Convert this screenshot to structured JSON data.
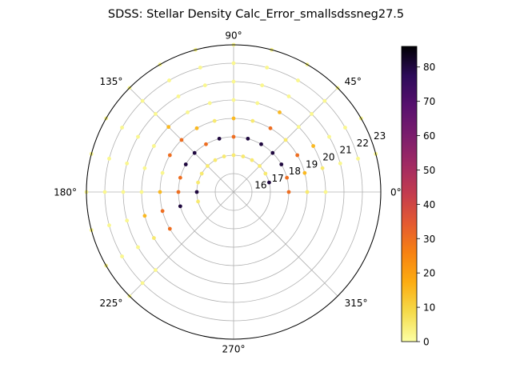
{
  "chart_data": {
    "type": "scatter",
    "projection": "polar",
    "title": "SDSS: Stellar Density Calc_Error_smallsdssneg27.5",
    "theta_tick_labels": [
      "0°",
      "45°",
      "90°",
      "135°",
      "180°",
      "225°",
      "270°",
      "315°"
    ],
    "theta_ticks_deg": [
      0,
      45,
      90,
      135,
      180,
      225,
      270,
      315
    ],
    "radial_ticks": [
      16,
      17,
      18,
      19,
      20,
      21,
      22,
      23
    ],
    "radial_range": [
      15,
      23
    ],
    "grid": true,
    "colorbar": {
      "cmap": "inferno_r",
      "range": [
        0,
        86
      ],
      "ticks": [
        0,
        10,
        20,
        30,
        40,
        50,
        60,
        70,
        80
      ],
      "position": "right"
    },
    "points": [
      {
        "theta": 0,
        "r": 18,
        "v": 30
      },
      {
        "theta": 0,
        "r": 19,
        "v": 5
      },
      {
        "theta": 0,
        "r": 20,
        "v": 2
      },
      {
        "theta": 15,
        "r": 17,
        "v": 80
      },
      {
        "theta": 15,
        "r": 18,
        "v": 30
      },
      {
        "theta": 15,
        "r": 19,
        "v": 15
      },
      {
        "theta": 15,
        "r": 20,
        "v": 5
      },
      {
        "theta": 15,
        "r": 21,
        "v": 2
      },
      {
        "theta": 15,
        "r": 22,
        "v": 2
      },
      {
        "theta": 15,
        "r": 23,
        "v": 2
      },
      {
        "theta": 30,
        "r": 17,
        "v": 5
      },
      {
        "theta": 30,
        "r": 18,
        "v": 80
      },
      {
        "theta": 30,
        "r": 19,
        "v": 30
      },
      {
        "theta": 30,
        "r": 20,
        "v": 15
      },
      {
        "theta": 30,
        "r": 21,
        "v": 2
      },
      {
        "theta": 30,
        "r": 22,
        "v": 2
      },
      {
        "theta": 30,
        "r": 23,
        "v": 2
      },
      {
        "theta": 45,
        "r": 17,
        "v": 5
      },
      {
        "theta": 45,
        "r": 18,
        "v": 80
      },
      {
        "theta": 45,
        "r": 19,
        "v": 5
      },
      {
        "theta": 45,
        "r": 20,
        "v": 2
      },
      {
        "theta": 45,
        "r": 21,
        "v": 2
      },
      {
        "theta": 45,
        "r": 22,
        "v": 2
      },
      {
        "theta": 45,
        "r": 23,
        "v": 2
      },
      {
        "theta": 60,
        "r": 17,
        "v": 5
      },
      {
        "theta": 60,
        "r": 18,
        "v": 80
      },
      {
        "theta": 60,
        "r": 19,
        "v": 30
      },
      {
        "theta": 60,
        "r": 20,
        "v": 15
      },
      {
        "theta": 60,
        "r": 21,
        "v": 2
      },
      {
        "theta": 60,
        "r": 22,
        "v": 2
      },
      {
        "theta": 60,
        "r": 23,
        "v": 2
      },
      {
        "theta": 75,
        "r": 17,
        "v": 5
      },
      {
        "theta": 75,
        "r": 18,
        "v": 80
      },
      {
        "theta": 75,
        "r": 19,
        "v": 5
      },
      {
        "theta": 75,
        "r": 20,
        "v": 2
      },
      {
        "theta": 75,
        "r": 21,
        "v": 2
      },
      {
        "theta": 75,
        "r": 22,
        "v": 2
      },
      {
        "theta": 75,
        "r": 23,
        "v": 2
      },
      {
        "theta": 90,
        "r": 17,
        "v": 5
      },
      {
        "theta": 90,
        "r": 18,
        "v": 30
      },
      {
        "theta": 90,
        "r": 19,
        "v": 15
      },
      {
        "theta": 90,
        "r": 20,
        "v": 2
      },
      {
        "theta": 90,
        "r": 21,
        "v": 2
      },
      {
        "theta": 90,
        "r": 22,
        "v": 2
      },
      {
        "theta": 90,
        "r": 23,
        "v": 2
      },
      {
        "theta": 105,
        "r": 17,
        "v": 5
      },
      {
        "theta": 105,
        "r": 18,
        "v": 80
      },
      {
        "theta": 105,
        "r": 19,
        "v": 5
      },
      {
        "theta": 105,
        "r": 20,
        "v": 2
      },
      {
        "theta": 105,
        "r": 21,
        "v": 2
      },
      {
        "theta": 105,
        "r": 22,
        "v": 2
      },
      {
        "theta": 105,
        "r": 23,
        "v": 2
      },
      {
        "theta": 120,
        "r": 17,
        "v": 5
      },
      {
        "theta": 120,
        "r": 18,
        "v": 30
      },
      {
        "theta": 120,
        "r": 19,
        "v": 15
      },
      {
        "theta": 120,
        "r": 20,
        "v": 2
      },
      {
        "theta": 120,
        "r": 21,
        "v": 2
      },
      {
        "theta": 120,
        "r": 22,
        "v": 2
      },
      {
        "theta": 120,
        "r": 23,
        "v": 2
      },
      {
        "theta": 135,
        "r": 17,
        "v": 5
      },
      {
        "theta": 135,
        "r": 18,
        "v": 80
      },
      {
        "theta": 135,
        "r": 19,
        "v": 30
      },
      {
        "theta": 135,
        "r": 20,
        "v": 15
      },
      {
        "theta": 135,
        "r": 21,
        "v": 2
      },
      {
        "theta": 135,
        "r": 22,
        "v": 2
      },
      {
        "theta": 135,
        "r": 23,
        "v": 2
      },
      {
        "theta": 150,
        "r": 17,
        "v": 5
      },
      {
        "theta": 150,
        "r": 18,
        "v": 80
      },
      {
        "theta": 150,
        "r": 19,
        "v": 30
      },
      {
        "theta": 150,
        "r": 20,
        "v": 2
      },
      {
        "theta": 150,
        "r": 21,
        "v": 2
      },
      {
        "theta": 150,
        "r": 22,
        "v": 2
      },
      {
        "theta": 150,
        "r": 23,
        "v": 2
      },
      {
        "theta": 165,
        "r": 17,
        "v": 5
      },
      {
        "theta": 165,
        "r": 18,
        "v": 30
      },
      {
        "theta": 165,
        "r": 19,
        "v": 2
      },
      {
        "theta": 165,
        "r": 20,
        "v": 2
      },
      {
        "theta": 165,
        "r": 21,
        "v": 2
      },
      {
        "theta": 165,
        "r": 22,
        "v": 2
      },
      {
        "theta": 165,
        "r": 23,
        "v": 2
      },
      {
        "theta": 180,
        "r": 17,
        "v": 80
      },
      {
        "theta": 180,
        "r": 18,
        "v": 30
      },
      {
        "theta": 180,
        "r": 19,
        "v": 15
      },
      {
        "theta": 180,
        "r": 20,
        "v": 2
      },
      {
        "theta": 180,
        "r": 21,
        "v": 2
      },
      {
        "theta": 180,
        "r": 22,
        "v": 2
      },
      {
        "theta": 180,
        "r": 23,
        "v": 2
      },
      {
        "theta": 195,
        "r": 17,
        "v": 5
      },
      {
        "theta": 195,
        "r": 18,
        "v": 80
      },
      {
        "theta": 195,
        "r": 19,
        "v": 30
      },
      {
        "theta": 195,
        "r": 20,
        "v": 15
      },
      {
        "theta": 195,
        "r": 21,
        "v": 2
      },
      {
        "theta": 195,
        "r": 22,
        "v": 2
      },
      {
        "theta": 195,
        "r": 23,
        "v": 2
      },
      {
        "theta": 210,
        "r": 19,
        "v": 30
      },
      {
        "theta": 210,
        "r": 20,
        "v": 5
      },
      {
        "theta": 210,
        "r": 21,
        "v": 2
      },
      {
        "theta": 210,
        "r": 22,
        "v": 2
      },
      {
        "theta": 210,
        "r": 23,
        "v": 2
      },
      {
        "theta": 225,
        "r": 21,
        "v": 2
      },
      {
        "theta": 225,
        "r": 22,
        "v": 2
      },
      {
        "theta": 225,
        "r": 23,
        "v": 2
      }
    ]
  }
}
